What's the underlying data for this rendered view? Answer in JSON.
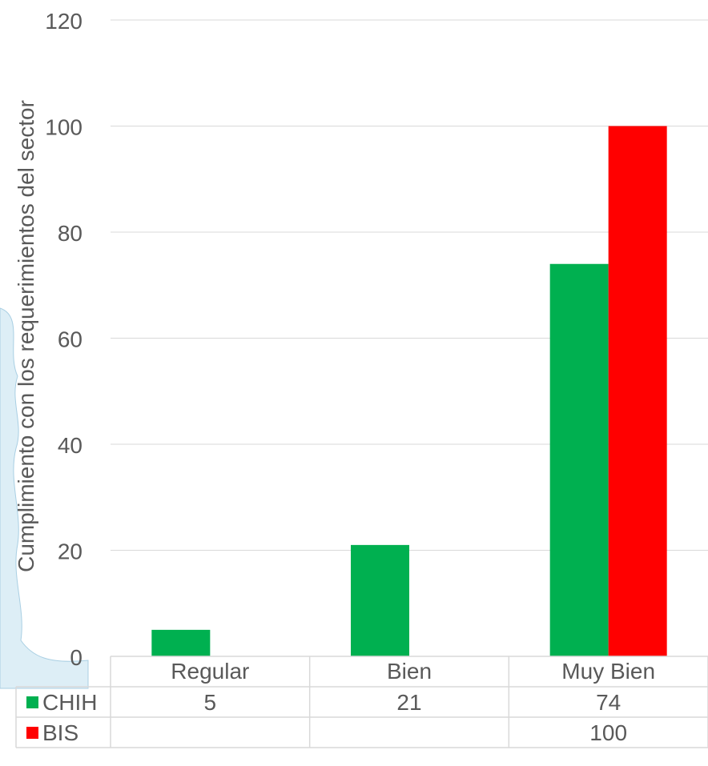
{
  "chart_data": {
    "type": "bar",
    "title": "",
    "xlabel": "",
    "ylabel": "Cumplimiento con los requerimientos del sector",
    "categories": [
      "Regular",
      "Bien",
      "Muy Bien"
    ],
    "series": [
      {
        "name": "CHIH",
        "color": "#00b050",
        "values": [
          5,
          21,
          74
        ]
      },
      {
        "name": "BIS",
        "color": "#ff0000",
        "values": [
          null,
          null,
          100
        ]
      }
    ],
    "ylim": [
      0,
      120
    ],
    "yticks": [
      0,
      20,
      40,
      60,
      80,
      100,
      120
    ],
    "grid": true,
    "legend": "data-table",
    "data_table": true,
    "colors": {
      "gridline": "#d9d9d9",
      "text": "#595959",
      "background_shape": "#ddeef6"
    }
  }
}
